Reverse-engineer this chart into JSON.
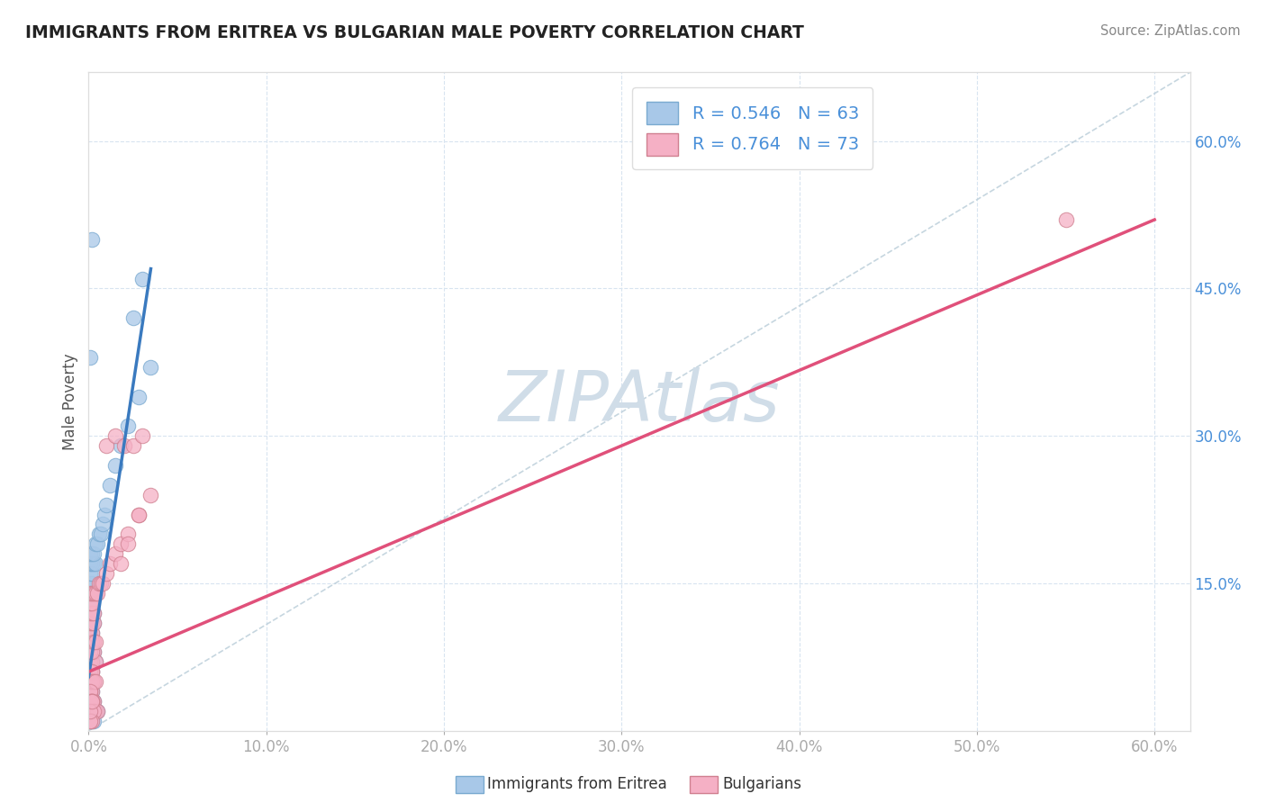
{
  "title": "IMMIGRANTS FROM ERITREA VS BULGARIAN MALE POVERTY CORRELATION CHART",
  "source_text": "Source: ZipAtlas.com",
  "ylabel": "Male Poverty",
  "xlim": [
    0.0,
    0.62
  ],
  "ylim": [
    0.0,
    0.67
  ],
  "xtick_labels": [
    "0.0%",
    "10.0%",
    "20.0%",
    "30.0%",
    "40.0%",
    "50.0%",
    "60.0%"
  ],
  "xtick_values": [
    0.0,
    0.1,
    0.2,
    0.3,
    0.4,
    0.5,
    0.6
  ],
  "ytick_labels": [
    "15.0%",
    "30.0%",
    "45.0%",
    "60.0%"
  ],
  "ytick_values": [
    0.15,
    0.3,
    0.45,
    0.6
  ],
  "blue_scatter_x": [
    0.001,
    0.002,
    0.001,
    0.002,
    0.003,
    0.001,
    0.002,
    0.003,
    0.004,
    0.001,
    0.002,
    0.001,
    0.002,
    0.001,
    0.002,
    0.003,
    0.001,
    0.002,
    0.003,
    0.001,
    0.002,
    0.001,
    0.002,
    0.003,
    0.001,
    0.002,
    0.001,
    0.002,
    0.001,
    0.002,
    0.003,
    0.004,
    0.001,
    0.002,
    0.003,
    0.004,
    0.005,
    0.006,
    0.007,
    0.008,
    0.009,
    0.01,
    0.012,
    0.015,
    0.018,
    0.022,
    0.028,
    0.035,
    0.025,
    0.03,
    0.001,
    0.002,
    0.003,
    0.001,
    0.002,
    0.003,
    0.004,
    0.005,
    0.001,
    0.002,
    0.003,
    0.001,
    0.002
  ],
  "blue_scatter_y": [
    0.03,
    0.04,
    0.05,
    0.06,
    0.05,
    0.07,
    0.07,
    0.08,
    0.07,
    0.09,
    0.09,
    0.1,
    0.1,
    0.11,
    0.11,
    0.11,
    0.12,
    0.12,
    0.12,
    0.13,
    0.13,
    0.14,
    0.14,
    0.14,
    0.15,
    0.15,
    0.16,
    0.16,
    0.17,
    0.17,
    0.17,
    0.17,
    0.18,
    0.18,
    0.18,
    0.19,
    0.19,
    0.2,
    0.2,
    0.21,
    0.22,
    0.23,
    0.25,
    0.27,
    0.29,
    0.31,
    0.34,
    0.37,
    0.42,
    0.46,
    0.04,
    0.03,
    0.03,
    0.02,
    0.02,
    0.02,
    0.02,
    0.02,
    0.01,
    0.01,
    0.01,
    0.38,
    0.5
  ],
  "pink_scatter_x": [
    0.001,
    0.002,
    0.001,
    0.002,
    0.003,
    0.001,
    0.002,
    0.003,
    0.004,
    0.001,
    0.002,
    0.001,
    0.002,
    0.001,
    0.002,
    0.003,
    0.001,
    0.002,
    0.003,
    0.001,
    0.002,
    0.001,
    0.002,
    0.003,
    0.004,
    0.005,
    0.006,
    0.007,
    0.008,
    0.01,
    0.012,
    0.015,
    0.018,
    0.022,
    0.028,
    0.035,
    0.01,
    0.015,
    0.02,
    0.025,
    0.03,
    0.018,
    0.022,
    0.028,
    0.001,
    0.002,
    0.003,
    0.001,
    0.002,
    0.003,
    0.004,
    0.005,
    0.001,
    0.002,
    0.003,
    0.004,
    0.001,
    0.002,
    0.001,
    0.002,
    0.003,
    0.004,
    0.001,
    0.002,
    0.001,
    0.002,
    0.003,
    0.001,
    0.002,
    0.001,
    0.001,
    0.002,
    0.55
  ],
  "pink_scatter_y": [
    0.03,
    0.04,
    0.05,
    0.06,
    0.05,
    0.07,
    0.07,
    0.08,
    0.07,
    0.09,
    0.09,
    0.1,
    0.1,
    0.11,
    0.11,
    0.11,
    0.12,
    0.12,
    0.12,
    0.13,
    0.13,
    0.14,
    0.14,
    0.14,
    0.14,
    0.14,
    0.15,
    0.15,
    0.15,
    0.16,
    0.17,
    0.18,
    0.19,
    0.2,
    0.22,
    0.24,
    0.29,
    0.3,
    0.29,
    0.29,
    0.3,
    0.17,
    0.19,
    0.22,
    0.04,
    0.03,
    0.03,
    0.02,
    0.02,
    0.02,
    0.02,
    0.02,
    0.08,
    0.08,
    0.09,
    0.09,
    0.06,
    0.06,
    0.05,
    0.05,
    0.05,
    0.05,
    0.04,
    0.03,
    0.03,
    0.03,
    0.02,
    0.01,
    0.01,
    0.01,
    0.02,
    0.03,
    0.52
  ],
  "blue_line": [
    [
      0.0,
      0.055
    ],
    [
      0.035,
      0.47
    ]
  ],
  "pink_line": [
    [
      0.0,
      0.06
    ],
    [
      0.6,
      0.52
    ]
  ],
  "diag_line": [
    [
      0.0,
      0.0
    ],
    [
      0.62,
      0.67
    ]
  ],
  "blue_color": "#a8c8e8",
  "blue_edge": "#7aaad0",
  "blue_line_color": "#3a7abf",
  "pink_color": "#f5b0c5",
  "pink_edge": "#d08090",
  "pink_line_color": "#e0507a",
  "diag_color": "#b8ccd8",
  "watermark": "ZIPAtlas",
  "watermark_color": "#d0dde8",
  "background_color": "#ffffff",
  "grid_color": "#d8e4f0",
  "title_color": "#222222",
  "axis_label_color": "#555555",
  "tick_color": "#4a90d9",
  "source_color": "#888888",
  "legend_text_color": "#4a90d9",
  "series_0_name": "Immigrants from Eritrea",
  "series_1_name": "Bulgarians",
  "R0": 0.546,
  "N0": 63,
  "R1": 0.764,
  "N1": 73
}
